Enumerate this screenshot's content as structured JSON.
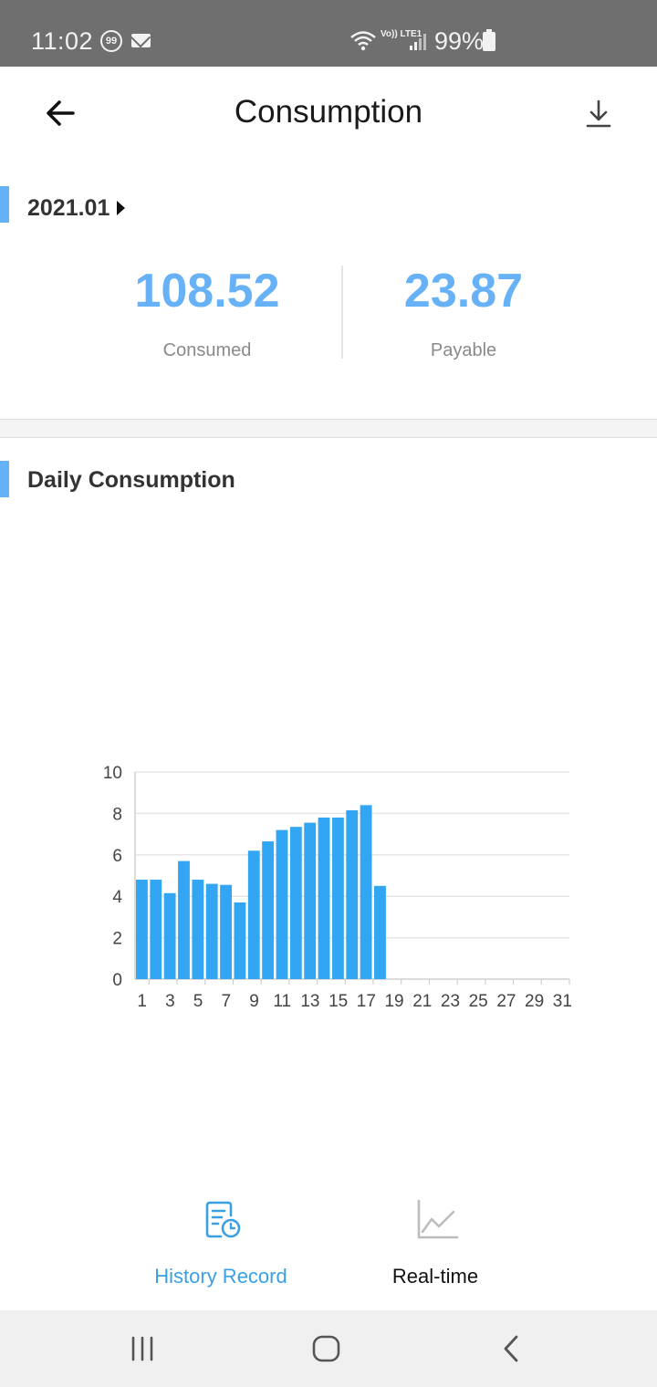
{
  "status_bar": {
    "time": "11:02",
    "notification_badge": "99",
    "network": "Vo)) LTE1",
    "battery": "99%",
    "icons": [
      "notification-count-icon",
      "mail-icon",
      "wifi-icon",
      "lte-icon",
      "signal-icon",
      "battery-icon"
    ]
  },
  "header": {
    "title": "Consumption",
    "back_icon": "arrow-left-icon",
    "download_icon": "download-icon"
  },
  "summary": {
    "month": "2021.01",
    "consumed_value": "108.52",
    "consumed_label": "Consumed",
    "payable_value": "23.87",
    "payable_label": "Payable"
  },
  "daily": {
    "title": "Daily Consumption"
  },
  "chart_data": {
    "type": "bar",
    "title": "",
    "xlabel": "",
    "ylabel": "",
    "ylim": [
      0,
      10
    ],
    "yticks": [
      0,
      2,
      4,
      6,
      8,
      10
    ],
    "xtick_labels": [
      "1",
      "3",
      "5",
      "7",
      "9",
      "11",
      "13",
      "15",
      "17",
      "19",
      "21",
      "23",
      "25",
      "27",
      "29",
      "31"
    ],
    "categories": [
      1,
      2,
      3,
      4,
      5,
      6,
      7,
      8,
      9,
      10,
      11,
      12,
      13,
      14,
      15,
      16,
      17,
      18,
      19,
      20,
      21,
      22,
      23,
      24,
      25,
      26,
      27,
      28,
      29,
      30,
      31
    ],
    "values": [
      4.8,
      4.8,
      4.15,
      5.7,
      4.8,
      4.6,
      4.55,
      3.7,
      6.2,
      6.65,
      7.2,
      7.35,
      7.55,
      7.8,
      7.8,
      8.15,
      8.4,
      4.5,
      null,
      null,
      null,
      null,
      null,
      null,
      null,
      null,
      null,
      null,
      null,
      null,
      null
    ],
    "grid": true,
    "colors": {
      "bar": "#33a6f3",
      "grid": "#e6e6e6",
      "axis": "#cfcfcf",
      "tick_text": "#444444"
    }
  },
  "bottom_tabs": [
    {
      "label": "History Record",
      "icon": "history-record-icon",
      "active": true
    },
    {
      "label": "Real-time",
      "icon": "line-chart-icon",
      "active": false
    }
  ],
  "nav_bar": {
    "icons": [
      "recent-apps-icon",
      "home-icon",
      "back-icon"
    ]
  },
  "colors": {
    "accent": "#67b2f6",
    "active_tab": "#3aa0e6",
    "status_bar": "#6f6f6f",
    "nav_bar": "#f0f0f0"
  }
}
